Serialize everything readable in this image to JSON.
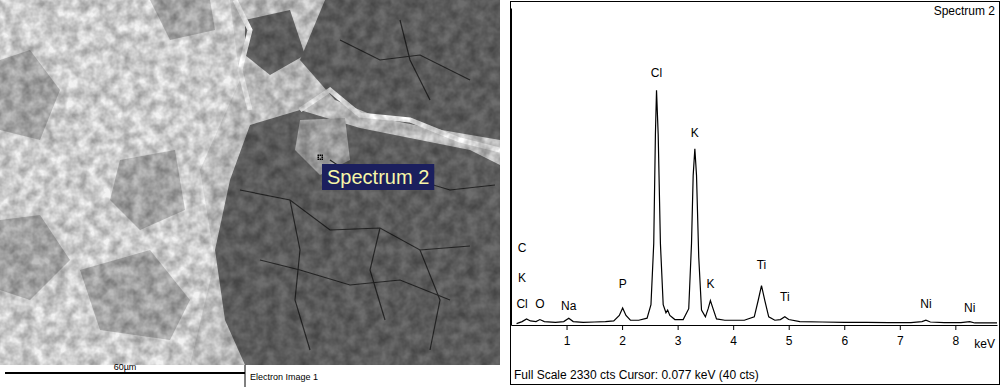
{
  "image": {
    "label": "Spectrum 2",
    "scale_bar": "60µm",
    "caption": "Electron Image 1"
  },
  "chart_data": {
    "type": "line",
    "title": "Spectrum 2",
    "x_label": "keV",
    "footer": "Full Scale 2330 cts Cursor: 0.077 keV (40 cts)",
    "color": "#000000",
    "x": [
      0.1,
      0.2,
      0.28,
      0.35,
      0.45,
      0.52,
      0.6,
      0.8,
      0.95,
      1.04,
      1.12,
      1.3,
      1.5,
      1.7,
      1.85,
      1.95,
      2.01,
      2.07,
      2.15,
      2.3,
      2.45,
      2.52,
      2.57,
      2.6,
      2.62,
      2.65,
      2.69,
      2.74,
      2.79,
      2.82,
      2.86,
      2.95,
      3.1,
      3.2,
      3.25,
      3.28,
      3.31,
      3.34,
      3.38,
      3.43,
      3.5,
      3.55,
      3.59,
      3.63,
      3.7,
      3.85,
      4.0,
      4.2,
      4.38,
      4.45,
      4.51,
      4.57,
      4.64,
      4.75,
      4.85,
      4.93,
      5.0,
      5.2,
      5.6,
      6.0,
      6.4,
      6.8,
      7.2,
      7.4,
      7.47,
      7.55,
      7.8,
      8.1,
      8.26,
      8.35,
      8.6,
      8.75
    ],
    "values": [
      10,
      25,
      45,
      30,
      25,
      40,
      25,
      20,
      25,
      50,
      25,
      20,
      22,
      25,
      30,
      70,
      125,
      70,
      35,
      35,
      50,
      150,
      600,
      1400,
      1725,
      1400,
      600,
      150,
      90,
      110,
      70,
      40,
      40,
      120,
      600,
      1100,
      1296,
      1100,
      500,
      110,
      60,
      120,
      180,
      130,
      45,
      35,
      35,
      35,
      60,
      180,
      290,
      180,
      60,
      35,
      40,
      60,
      40,
      25,
      22,
      20,
      20,
      18,
      18,
      25,
      35,
      22,
      18,
      18,
      25,
      15,
      15,
      15
    ],
    "xlim": [
      0,
      8.75
    ],
    "xticks": [
      1,
      2,
      3,
      4,
      5,
      6,
      7,
      8
    ],
    "ylim": [
      0,
      2330
    ],
    "tick_labels": "x",
    "annotations": [
      {
        "text": "C",
        "x": 0.2,
        "y": 540
      },
      {
        "text": "K",
        "x": 0.2,
        "y": 313
      },
      {
        "text": "Cl",
        "x": 0.2,
        "y": 124
      },
      {
        "text": "O",
        "x": 0.52,
        "y": 124
      },
      {
        "text": "Na",
        "x": 1.04,
        "y": 110
      },
      {
        "text": "P",
        "x": 2.01,
        "y": 270
      },
      {
        "text": "Cl",
        "x": 2.62,
        "y": 1820
      },
      {
        "text": "K",
        "x": 3.31,
        "y": 1380
      },
      {
        "text": "K",
        "x": 3.59,
        "y": 275
      },
      {
        "text": "Ti",
        "x": 4.51,
        "y": 415
      },
      {
        "text": "Ti",
        "x": 4.93,
        "y": 180
      },
      {
        "text": "Ni",
        "x": 7.47,
        "y": 124
      },
      {
        "text": "Ni",
        "x": 8.26,
        "y": 95
      }
    ]
  }
}
